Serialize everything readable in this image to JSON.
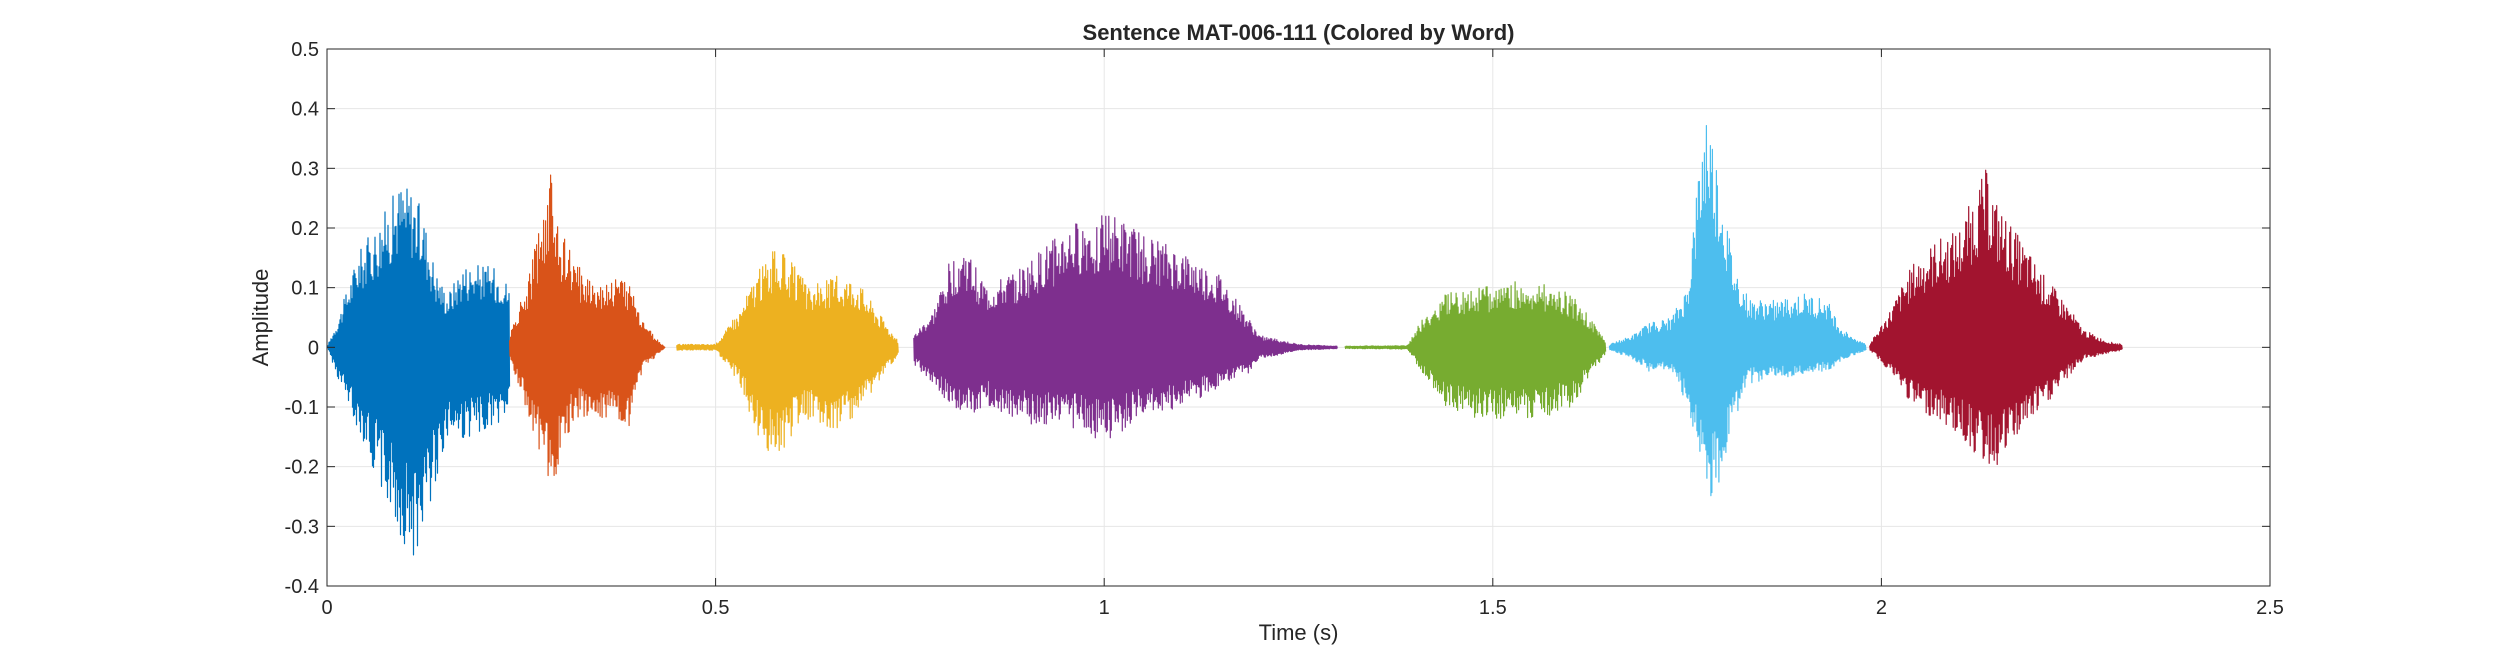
{
  "chart_data": {
    "type": "line",
    "title": "Sentence MAT-006-111 (Colored by Word)",
    "xlabel": "Time (s)",
    "ylabel": "Amplitude",
    "xlim": [
      0,
      2.5
    ],
    "ylim": [
      -0.4,
      0.5
    ],
    "x_ticks": [
      0,
      0.5,
      1,
      1.5,
      2,
      2.5
    ],
    "x_tick_labels": [
      "0",
      "0.5",
      "1",
      "1.5",
      "2",
      "2.5"
    ],
    "y_ticks": [
      0.5,
      0.4,
      0.3,
      0.2,
      0.1,
      0,
      -0.1,
      -0.2,
      -0.3,
      -0.4
    ],
    "y_tick_labels": [
      "0.5",
      "0.4",
      "0.3",
      "0.2",
      "0.1",
      "0",
      "-0.1",
      "-0.2",
      "-0.3",
      "-0.4"
    ],
    "grid": true,
    "legend": false,
    "series": [
      {
        "color": "#0072BD",
        "start": 0.0,
        "end": 0.235,
        "envelope": [
          [
            0.0,
            0.0,
            0.0
          ],
          [
            0.015,
            0.05,
            -0.06
          ],
          [
            0.04,
            0.16,
            -0.14
          ],
          [
            0.07,
            0.22,
            -0.24
          ],
          [
            0.095,
            0.28,
            -0.33
          ],
          [
            0.11,
            0.27,
            -0.36
          ],
          [
            0.125,
            0.22,
            -0.3
          ],
          [
            0.14,
            0.13,
            -0.22
          ],
          [
            0.155,
            0.09,
            -0.15
          ],
          [
            0.175,
            0.14,
            -0.16
          ],
          [
            0.2,
            0.14,
            -0.14
          ],
          [
            0.225,
            0.13,
            -0.13
          ],
          [
            0.235,
            0.1,
            -0.1
          ]
        ]
      },
      {
        "color": "#D95319",
        "start": 0.235,
        "end": 0.435,
        "envelope": [
          [
            0.235,
            0.02,
            -0.02
          ],
          [
            0.26,
            0.12,
            -0.12
          ],
          [
            0.28,
            0.25,
            -0.22
          ],
          [
            0.29,
            0.3,
            -0.25
          ],
          [
            0.3,
            0.2,
            -0.18
          ],
          [
            0.32,
            0.14,
            -0.12
          ],
          [
            0.35,
            0.11,
            -0.12
          ],
          [
            0.37,
            0.12,
            -0.12
          ],
          [
            0.39,
            0.11,
            -0.14
          ],
          [
            0.405,
            0.05,
            -0.04
          ],
          [
            0.42,
            0.02,
            -0.02
          ],
          [
            0.435,
            0.0,
            0.0
          ]
        ]
      },
      {
        "color": "#EDB120",
        "start": 0.45,
        "end": 0.735,
        "envelope": [
          [
            0.45,
            0.005,
            -0.005
          ],
          [
            0.5,
            0.005,
            -0.005
          ],
          [
            0.53,
            0.06,
            -0.06
          ],
          [
            0.55,
            0.12,
            -0.14
          ],
          [
            0.565,
            0.15,
            -0.18
          ],
          [
            0.58,
            0.17,
            -0.19
          ],
          [
            0.6,
            0.14,
            -0.14
          ],
          [
            0.62,
            0.1,
            -0.12
          ],
          [
            0.65,
            0.12,
            -0.14
          ],
          [
            0.68,
            0.12,
            -0.12
          ],
          [
            0.71,
            0.06,
            -0.06
          ],
          [
            0.735,
            0.01,
            -0.01
          ]
        ]
      },
      {
        "color": "#7E2F8E",
        "start": 0.755,
        "end": 1.3,
        "envelope": [
          [
            0.755,
            0.02,
            -0.03
          ],
          [
            0.78,
            0.06,
            -0.06
          ],
          [
            0.8,
            0.14,
            -0.1
          ],
          [
            0.82,
            0.17,
            -0.12
          ],
          [
            0.85,
            0.1,
            -0.1
          ],
          [
            0.9,
            0.14,
            -0.13
          ],
          [
            0.95,
            0.2,
            -0.13
          ],
          [
            1.0,
            0.23,
            -0.16
          ],
          [
            1.05,
            0.19,
            -0.12
          ],
          [
            1.1,
            0.16,
            -0.1
          ],
          [
            1.15,
            0.12,
            -0.07
          ],
          [
            1.18,
            0.06,
            -0.05
          ],
          [
            1.2,
            0.02,
            -0.02
          ],
          [
            1.25,
            0.005,
            -0.005
          ],
          [
            1.3,
            0.002,
            -0.002
          ]
        ]
      },
      {
        "color": "#77AC30",
        "start": 1.31,
        "end": 1.645,
        "envelope": [
          [
            1.31,
            0.002,
            -0.002
          ],
          [
            1.39,
            0.003,
            -0.003
          ],
          [
            1.41,
            0.05,
            -0.05
          ],
          [
            1.44,
            0.09,
            -0.1
          ],
          [
            1.48,
            0.1,
            -0.12
          ],
          [
            1.52,
            0.11,
            -0.12
          ],
          [
            1.56,
            0.11,
            -0.12
          ],
          [
            1.6,
            0.09,
            -0.1
          ],
          [
            1.625,
            0.05,
            -0.05
          ],
          [
            1.645,
            0.01,
            -0.01
          ]
        ]
      },
      {
        "color": "#4DBEEE",
        "start": 1.65,
        "end": 1.98,
        "envelope": [
          [
            1.65,
            0.005,
            -0.005
          ],
          [
            1.68,
            0.02,
            -0.02
          ],
          [
            1.7,
            0.04,
            -0.04
          ],
          [
            1.73,
            0.05,
            -0.04
          ],
          [
            1.75,
            0.1,
            -0.1
          ],
          [
            1.765,
            0.3,
            -0.2
          ],
          [
            1.775,
            0.41,
            -0.26
          ],
          [
            1.79,
            0.3,
            -0.25
          ],
          [
            1.81,
            0.14,
            -0.12
          ],
          [
            1.83,
            0.08,
            -0.06
          ],
          [
            1.87,
            0.08,
            -0.05
          ],
          [
            1.9,
            0.09,
            -0.05
          ],
          [
            1.93,
            0.08,
            -0.04
          ],
          [
            1.95,
            0.03,
            -0.02
          ],
          [
            1.98,
            0.005,
            -0.005
          ]
        ]
      },
      {
        "color": "#A2142F",
        "start": 1.985,
        "end": 2.31,
        "envelope": [
          [
            1.985,
            0.005,
            -0.005
          ],
          [
            2.01,
            0.06,
            -0.04
          ],
          [
            2.04,
            0.14,
            -0.1
          ],
          [
            2.07,
            0.18,
            -0.12
          ],
          [
            2.1,
            0.2,
            -0.15
          ],
          [
            2.12,
            0.26,
            -0.18
          ],
          [
            2.135,
            0.3,
            -0.2
          ],
          [
            2.15,
            0.24,
            -0.2
          ],
          [
            2.18,
            0.18,
            -0.14
          ],
          [
            2.21,
            0.12,
            -0.1
          ],
          [
            2.24,
            0.07,
            -0.05
          ],
          [
            2.26,
            0.03,
            -0.02
          ],
          [
            2.29,
            0.01,
            -0.01
          ],
          [
            2.31,
            0.005,
            -0.005
          ]
        ]
      }
    ]
  }
}
